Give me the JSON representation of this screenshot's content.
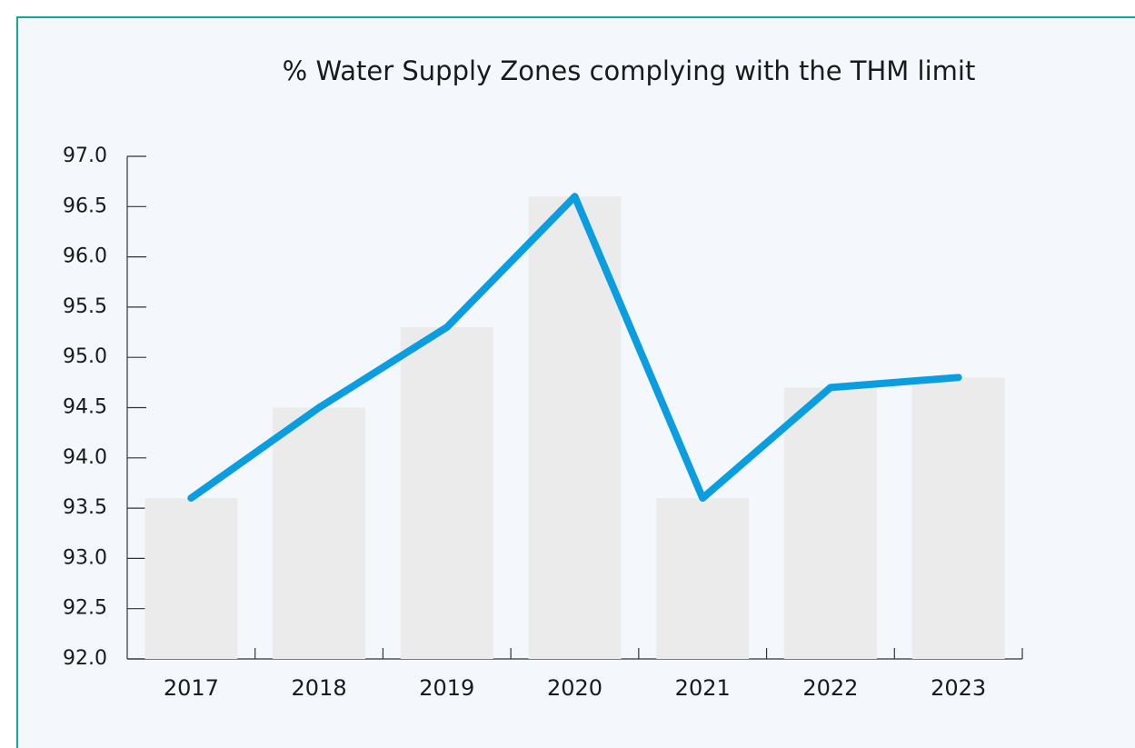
{
  "chart_data": {
    "type": "bar+line",
    "title": "% Water Supply Zones complying with the THM limit",
    "categories": [
      "2017",
      "2018",
      "2019",
      "2020",
      "2021",
      "2022",
      "2023"
    ],
    "values": [
      93.6,
      94.5,
      95.3,
      96.6,
      93.6,
      94.7,
      94.8
    ],
    "bar_color": "#ebebeb",
    "line_color": "#0a9ee0",
    "ylim": [
      92,
      97
    ],
    "yticks": [
      {
        "value": 92,
        "label": "92.0"
      },
      92.5,
      {
        "value": 93,
        "label": "93.0"
      },
      93.5,
      {
        "value": 94,
        "label": "94.0"
      },
      94.5,
      {
        "value": 95,
        "label": "95.0"
      },
      95.5,
      {
        "value": 96,
        "label": "96.0"
      },
      96.5,
      {
        "value": 97,
        "label": "97.0"
      }
    ]
  }
}
